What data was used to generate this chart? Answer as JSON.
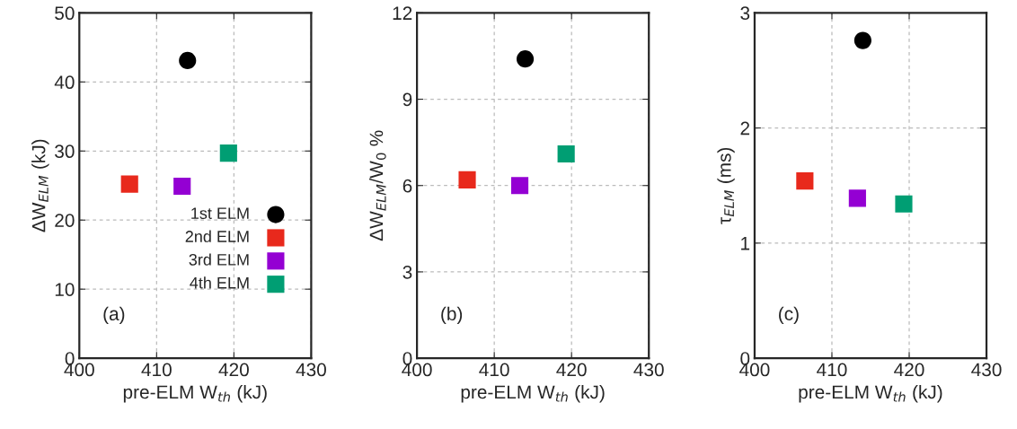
{
  "chart_data": [
    {
      "type": "scatter",
      "xlabel": "pre-ELM W$_{th}$ (kJ)",
      "ylabel": "ΔW$_{ELM}$ (kJ)",
      "xlim": [
        400,
        430
      ],
      "xticks": [
        400,
        410,
        420,
        430
      ],
      "ylim": [
        0,
        50
      ],
      "yticks": [
        0,
        10,
        20,
        30,
        40,
        50
      ],
      "grid": true,
      "legend": "bottom right",
      "annotations": [
        "(a)"
      ],
      "series": [
        {
          "name": "1st ELM",
          "color": "#000000",
          "marker": "circle",
          "x": [
            414.0
          ],
          "values": [
            43.1
          ]
        },
        {
          "name": "2nd ELM",
          "color": "#e8291c",
          "marker": "square",
          "x": [
            406.5
          ],
          "values": [
            25.2
          ]
        },
        {
          "name": "3rd ELM",
          "color": "#9400d3",
          "marker": "square",
          "x": [
            413.3
          ],
          "values": [
            24.9
          ]
        },
        {
          "name": "4th ELM",
          "color": "#009e73",
          "marker": "square",
          "x": [
            419.3
          ],
          "values": [
            29.7
          ]
        }
      ]
    },
    {
      "type": "scatter",
      "xlabel": "pre-ELM W$_{th}$ (kJ)",
      "ylabel": "ΔW$_{ELM}$/W$_{0}$ %",
      "xlim": [
        400,
        430
      ],
      "xticks": [
        400,
        410,
        420,
        430
      ],
      "ylim": [
        0,
        12
      ],
      "yticks": [
        0,
        3,
        6,
        9,
        12
      ],
      "grid": true,
      "annotations": [
        "(b)"
      ],
      "series": [
        {
          "color": "#000000",
          "marker": "circle",
          "x": [
            414.0
          ],
          "values": [
            10.4
          ]
        },
        {
          "color": "#e8291c",
          "marker": "square",
          "x": [
            406.5
          ],
          "values": [
            6.2
          ]
        },
        {
          "color": "#9400d3",
          "marker": "square",
          "x": [
            413.3
          ],
          "values": [
            6.0
          ]
        },
        {
          "color": "#009e73",
          "marker": "square",
          "x": [
            419.3
          ],
          "values": [
            7.1
          ]
        }
      ]
    },
    {
      "type": "scatter",
      "xlabel": "pre-ELM W$_{th}$ (kJ)",
      "ylabel": "τ$_{ELM}$ (ms)",
      "xlim": [
        400,
        430
      ],
      "xticks": [
        400,
        410,
        420,
        430
      ],
      "ylim": [
        0,
        3
      ],
      "yticks": [
        0,
        1,
        2,
        3
      ],
      "grid": true,
      "annotations": [
        "(c)"
      ],
      "series": [
        {
          "color": "#000000",
          "marker": "circle",
          "x": [
            414.0
          ],
          "values": [
            2.76
          ]
        },
        {
          "color": "#e8291c",
          "marker": "square",
          "x": [
            406.5
          ],
          "values": [
            1.54
          ]
        },
        {
          "color": "#9400d3",
          "marker": "square",
          "x": [
            413.3
          ],
          "values": [
            1.39
          ]
        },
        {
          "color": "#009e73",
          "marker": "square",
          "x": [
            419.3
          ],
          "values": [
            1.34
          ]
        }
      ]
    }
  ]
}
